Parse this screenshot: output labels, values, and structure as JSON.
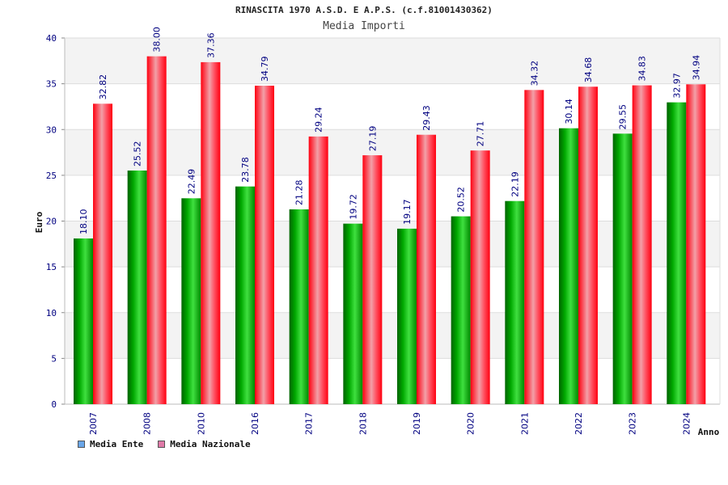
{
  "title": "RINASCITA 1970 A.S.D. E A.P.S. (c.f.81001430362)",
  "subtitle": "Media Importi",
  "colors": {
    "ente": "#00a000",
    "nazionale": "#ff1f2f",
    "legend_ente": "#6aa6e8",
    "legend_nazionale": "#e07aa8",
    "label": "#000080",
    "band": "#f3f3f3"
  },
  "legend": [
    {
      "label": "Media Ente"
    },
    {
      "label": "Media Nazionale"
    }
  ],
  "chart_data": {
    "type": "bar",
    "xlabel": "Anno",
    "ylabel": "Euro",
    "ylim": [
      0,
      40
    ],
    "yticks": [
      0,
      5,
      10,
      15,
      20,
      25,
      30,
      35,
      40
    ],
    "grid": true,
    "legend_position": "bottom-left",
    "categories": [
      "2007",
      "2008",
      "2010",
      "2016",
      "2017",
      "2018",
      "2019",
      "2020",
      "2021",
      "2022",
      "2023",
      "2024"
    ],
    "series": [
      {
        "name": "Media Ente",
        "values": [
          18.1,
          25.52,
          22.49,
          23.78,
          21.28,
          19.72,
          19.17,
          20.52,
          22.19,
          30.14,
          29.55,
          32.97
        ],
        "labels": [
          "18.10",
          "25.52",
          "22.49",
          "23.78",
          "21.28",
          "19.72",
          "19.17",
          "20.52",
          "22.19",
          "30.14",
          "29.55",
          "32.97"
        ]
      },
      {
        "name": "Media Nazionale",
        "values": [
          32.82,
          38.0,
          37.36,
          34.79,
          29.24,
          27.19,
          29.43,
          27.71,
          34.32,
          34.68,
          34.83,
          34.94
        ],
        "labels": [
          "32.82",
          "38.00",
          "37.36",
          "34.79",
          "29.24",
          "27.19",
          "29.43",
          "27.71",
          "34.32",
          "34.68",
          "34.83",
          "34.94"
        ]
      }
    ]
  }
}
